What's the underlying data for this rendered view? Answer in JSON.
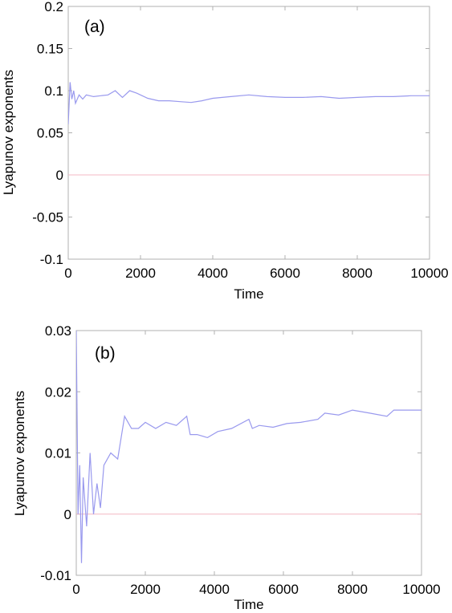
{
  "chart_data": [
    {
      "type": "line",
      "panel_label": "(a)",
      "xlabel": "Time",
      "ylabel": "Lyapunov exponents",
      "xlim": [
        0,
        10000
      ],
      "ylim": [
        -0.1,
        0.2
      ],
      "xticks": [
        "0",
        "2000",
        "4000",
        "6000",
        "8000",
        "10000"
      ],
      "yticks": [
        "0.2",
        "0.15",
        "0.1",
        "0.05",
        "0",
        "-0.05",
        "-0.1"
      ],
      "reference_line": {
        "y": 0,
        "color": "#f4b8c4"
      },
      "series": [
        {
          "color": "#9999ee",
          "x": [
            0,
            50,
            100,
            150,
            200,
            300,
            400,
            500,
            700,
            900,
            1100,
            1300,
            1500,
            1700,
            1900,
            2200,
            2500,
            2800,
            3100,
            3400,
            3700,
            4000,
            4500,
            5000,
            5500,
            6000,
            6500,
            7000,
            7500,
            8000,
            8500,
            9000,
            9500,
            10000
          ],
          "y": [
            0.06,
            0.11,
            0.09,
            0.1,
            0.085,
            0.095,
            0.09,
            0.095,
            0.093,
            0.094,
            0.095,
            0.1,
            0.092,
            0.1,
            0.097,
            0.091,
            0.088,
            0.088,
            0.087,
            0.086,
            0.088,
            0.091,
            0.093,
            0.095,
            0.093,
            0.092,
            0.092,
            0.093,
            0.091,
            0.092,
            0.093,
            0.093,
            0.094,
            0.094
          ]
        }
      ]
    },
    {
      "type": "line",
      "panel_label": "(b)",
      "xlabel": "Time",
      "ylabel": "Lyapunov exponents",
      "xlim": [
        0,
        10000
      ],
      "ylim": [
        -0.01,
        0.03
      ],
      "xticks": [
        "0",
        "2000",
        "4000",
        "6000",
        "8000",
        "10000"
      ],
      "yticks": [
        "0.03",
        "0.02",
        "0.01",
        "0",
        "-0.01"
      ],
      "reference_line": {
        "y": 0,
        "color": "#f4b8c4"
      },
      "series": [
        {
          "color": "#9999ee",
          "x": [
            0,
            50,
            100,
            150,
            200,
            300,
            400,
            500,
            600,
            700,
            800,
            1000,
            1200,
            1400,
            1600,
            1800,
            2000,
            2300,
            2600,
            2900,
            3200,
            3300,
            3500,
            3800,
            4100,
            4500,
            5000,
            5100,
            5300,
            5700,
            6100,
            6500,
            7000,
            7200,
            7600,
            8000,
            8500,
            9000,
            9200,
            9500,
            10000
          ],
          "y": [
            0.03,
            0.0,
            0.008,
            -0.008,
            0.006,
            -0.002,
            0.01,
            0.0,
            0.005,
            0.001,
            0.008,
            0.01,
            0.009,
            0.016,
            0.014,
            0.014,
            0.015,
            0.014,
            0.015,
            0.0145,
            0.016,
            0.013,
            0.013,
            0.0125,
            0.0135,
            0.014,
            0.0155,
            0.014,
            0.0145,
            0.0142,
            0.0148,
            0.015,
            0.0155,
            0.0165,
            0.0162,
            0.017,
            0.0165,
            0.016,
            0.017,
            0.017,
            0.017
          ]
        }
      ]
    }
  ]
}
